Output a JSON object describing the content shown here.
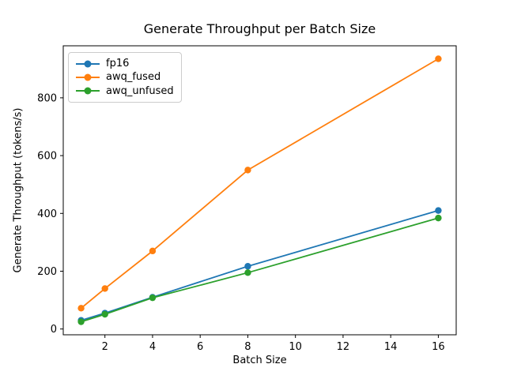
{
  "chart_data": {
    "type": "line",
    "title": "Generate Throughput per Batch Size",
    "xlabel": "Batch Size",
    "ylabel": "Generate Throughput (tokens/s)",
    "x": [
      1,
      2,
      4,
      8,
      16
    ],
    "series": [
      {
        "name": "fp16",
        "color": "#1f77b4",
        "values": [
          30,
          55,
          110,
          217,
          410
        ]
      },
      {
        "name": "awq_fused",
        "color": "#ff7f0e",
        "values": [
          72,
          140,
          270,
          550,
          935
        ]
      },
      {
        "name": "awq_unfused",
        "color": "#2ca02c",
        "values": [
          25,
          51,
          108,
          195,
          384
        ]
      }
    ],
    "xticks": [
      2,
      4,
      6,
      8,
      10,
      12,
      14,
      16
    ],
    "yticks": [
      0,
      200,
      400,
      600,
      800
    ],
    "xlim": [
      0.25,
      16.75
    ],
    "ylim": [
      -20,
      980
    ],
    "grid": false,
    "marker": "o",
    "legend_position": "upper left",
    "axis_color": "#000000",
    "background_color": "#ffffff"
  }
}
